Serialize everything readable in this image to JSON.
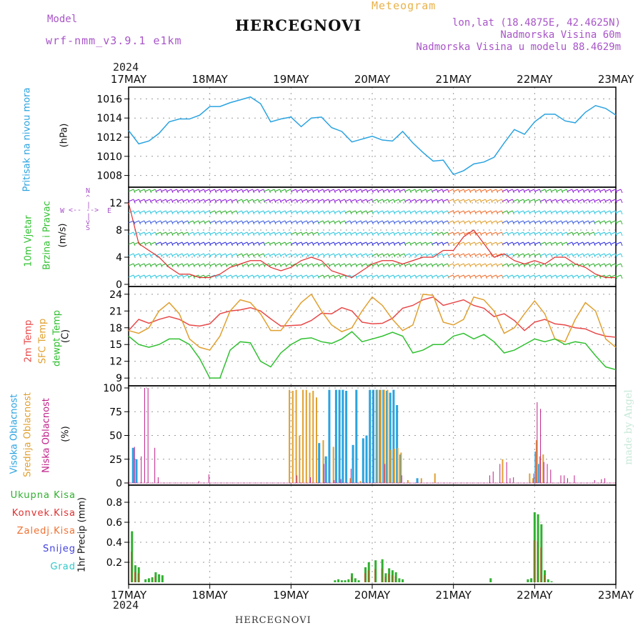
{
  "header": {
    "model_label": "Model",
    "model_name": "wrf-nmm_v3.9.1 e1km",
    "station": "HERCEGNOVI",
    "meteogram": "Meteogram",
    "lonlat": "lon,lat (18.4875E, 42.4625N)",
    "elevation": "Nadmorska Visina 60m",
    "model_elevation": "Nadmorska Visina u modelu 88.4629m",
    "year_top": "2024",
    "year_bottom": "2024",
    "footer_station": "HERCEGNOVI",
    "watermark": "made by Angel"
  },
  "axes": {
    "dates": [
      "17MAY",
      "18MAY",
      "19MAY",
      "20MAY",
      "21MAY",
      "22MAY",
      "23MAY"
    ]
  },
  "labels": {
    "pressure_name": "Pritisak na nivou mora",
    "pressure_unit": "(hPa)",
    "wind_name1": "10m Vjetar",
    "wind_name2": "Brzina i Pravac",
    "wind_unit": "(m/s)",
    "compass_n": "N",
    "compass_w": "W",
    "compass_e": "E",
    "compass_s": "S",
    "temp_2m": "2m Temp",
    "temp_sfc": "SFC Temp",
    "temp_dew": "dewpt Temp",
    "temp_unit": "(C)",
    "cloud_high": "Visoka Oblacnost",
    "cloud_mid": "Srednja Oblacnost",
    "cloud_low": "Niska Oblacnost",
    "cloud_unit": "(%)",
    "precip_total": "Ukupna Kisa",
    "precip_conv": "Konvek.Kisa",
    "precip_freezing": "Zaledj.Kisa",
    "precip_snow": "Snijeg",
    "precip_hail": "Grad",
    "precip_axis": "1hr Precip (mm)"
  },
  "colors": {
    "pressure": "#2aa3e0",
    "wind_speed": "#e03030",
    "temp_2m": "#e84848",
    "temp_sfc": "#e0a030",
    "dewpoint": "#30c030",
    "cloud_high": "#2aa3e0",
    "cloud_mid": "#e0a030",
    "cloud_low": "#c0208a",
    "precip_total": "#30b030",
    "precip_conv": "#e03030",
    "precip_freezing": "#f07030",
    "precip_snow": "#4040e0",
    "precip_hail": "#30c8c8",
    "label_purple": "#a855c8",
    "label_gold": "#e8b24a"
  },
  "chart_data": [
    {
      "type": "line",
      "name": "pressure",
      "x_unit": "hours from 17MAY 00UTC",
      "ylim": [
        1007,
        1017
      ],
      "yticks": [
        1008,
        1010,
        1012,
        1014,
        1016
      ],
      "series": [
        {
          "name": "",
          "x": [
            0,
            3,
            6,
            9,
            12,
            15,
            18,
            21,
            24,
            27,
            30,
            33,
            36,
            39,
            42,
            45,
            48,
            51,
            54,
            57,
            60,
            63,
            66,
            69,
            72,
            75,
            78,
            81,
            84,
            87,
            90,
            93,
            96,
            99,
            102,
            105,
            108,
            111,
            114,
            117,
            120,
            123,
            126,
            129,
            132,
            135,
            138,
            141,
            144
          ],
          "values": [
            1012.7,
            1011.3,
            1011.6,
            1012.4,
            1013.6,
            1013.9,
            1013.9,
            1014.3,
            1015.2,
            1015.2,
            1015.6,
            1015.9,
            1016.2,
            1015.5,
            1013.6,
            1013.9,
            1014.1,
            1013.1,
            1014.0,
            1014.1,
            1013.0,
            1012.6,
            1011.5,
            1011.8,
            1012.1,
            1011.7,
            1011.6,
            1012.6,
            1011.4,
            1010.4,
            1009.5,
            1009.6,
            1008.1,
            1008.5,
            1009.2,
            1009.4,
            1009.9,
            1011.4,
            1012.8,
            1012.3,
            1013.6,
            1014.4,
            1014.4,
            1013.7,
            1013.5,
            1014.6,
            1015.3,
            1015.0,
            1014.3
          ]
        }
      ]
    },
    {
      "type": "line",
      "name": "wind",
      "x_unit": "hours from 17MAY 00UTC",
      "ylim": [
        0,
        14
      ],
      "yticks": [
        0,
        4,
        8,
        12
      ],
      "series": [
        {
          "name": "",
          "x": [
            0,
            3,
            6,
            9,
            12,
            15,
            18,
            21,
            24,
            27,
            30,
            33,
            36,
            39,
            42,
            45,
            48,
            51,
            54,
            57,
            60,
            63,
            66,
            69,
            72,
            75,
            78,
            81,
            84,
            87,
            90,
            93,
            96,
            99,
            102,
            105,
            108,
            111,
            114,
            117,
            120,
            123,
            126,
            129,
            132,
            135,
            138,
            141,
            144
          ],
          "values": [
            12,
            6,
            5,
            4,
            2.5,
            1.5,
            1.5,
            1,
            1,
            1.5,
            2.5,
            3,
            3.5,
            3.5,
            2.5,
            2,
            2.5,
            3.5,
            4,
            3.5,
            2,
            1.5,
            1,
            2,
            3,
            3.5,
            3.5,
            3,
            3.5,
            4,
            4,
            5,
            5,
            7,
            8,
            6,
            4,
            4.5,
            3.5,
            3,
            3.5,
            3,
            4,
            4,
            3,
            2.5,
            1.5,
            1,
            1
          ]
        }
      ]
    },
    {
      "type": "line",
      "name": "temperature",
      "x_unit": "hours from 17MAY 00UTC",
      "ylim": [
        8,
        25
      ],
      "yticks": [
        9,
        12,
        15,
        18,
        21,
        24
      ],
      "series": [
        {
          "name": "2m Temp",
          "x": [
            0,
            3,
            6,
            9,
            12,
            15,
            18,
            21,
            24,
            27,
            30,
            33,
            36,
            39,
            42,
            45,
            48,
            51,
            54,
            57,
            60,
            63,
            66,
            69,
            72,
            75,
            78,
            81,
            84,
            87,
            90,
            93,
            96,
            99,
            102,
            105,
            108,
            111,
            114,
            117,
            120,
            123,
            126,
            129,
            132,
            135,
            138,
            141,
            144
          ],
          "values": [
            17.5,
            19.5,
            18.8,
            19.5,
            20.0,
            19.5,
            18.5,
            18.3,
            18.7,
            20.5,
            21.0,
            21.2,
            21.6,
            21.0,
            19.6,
            18.3,
            18.4,
            18.5,
            19.3,
            20.6,
            20.5,
            21.6,
            21.0,
            19.0,
            18.7,
            18.8,
            19.7,
            21.5,
            22.0,
            23.0,
            23.5,
            22.0,
            22.5,
            23.0,
            22.0,
            21.5,
            20.0,
            20.5,
            19.3,
            17.5,
            19.0,
            19.5,
            18.7,
            18.5,
            18.0,
            17.8,
            17.0,
            16.5,
            16.3
          ]
        },
        {
          "name": "SFC Temp",
          "x": [
            0,
            3,
            6,
            9,
            12,
            15,
            18,
            21,
            24,
            27,
            30,
            33,
            36,
            39,
            42,
            45,
            48,
            51,
            54,
            57,
            60,
            63,
            66,
            69,
            72,
            75,
            78,
            81,
            84,
            87,
            90,
            93,
            96,
            99,
            102,
            105,
            108,
            111,
            114,
            117,
            120,
            123,
            126,
            129,
            132,
            135,
            138,
            141,
            144
          ],
          "values": [
            17.5,
            17.0,
            18.0,
            21.0,
            22.5,
            20.5,
            16.0,
            14.5,
            14.0,
            16.5,
            21.0,
            23.0,
            22.5,
            20.5,
            17.5,
            17.5,
            20.0,
            22.5,
            24.0,
            21.0,
            18.5,
            17.3,
            18.0,
            21.0,
            23.5,
            22.0,
            19.5,
            17.5,
            18.5,
            24.0,
            23.8,
            19.0,
            18.5,
            19.5,
            23.5,
            23.0,
            21.0,
            17.0,
            18.0,
            20.5,
            22.8,
            20.5,
            16.0,
            15.5,
            19.5,
            22.5,
            21.0,
            16.0,
            14.5
          ]
        },
        {
          "name": "dewpt Temp",
          "x": [
            0,
            3,
            6,
            9,
            12,
            15,
            18,
            21,
            24,
            27,
            30,
            33,
            36,
            39,
            42,
            45,
            48,
            51,
            54,
            57,
            60,
            63,
            66,
            69,
            72,
            75,
            78,
            81,
            84,
            87,
            90,
            93,
            96,
            99,
            102,
            105,
            108,
            111,
            114,
            117,
            120,
            123,
            126,
            129,
            132,
            135,
            138,
            141,
            144
          ],
          "values": [
            16.5,
            15.0,
            14.5,
            15.0,
            16.0,
            16.0,
            15.0,
            12.5,
            9.0,
            9.0,
            14.0,
            15.5,
            15.3,
            12.0,
            11.0,
            13.5,
            15.0,
            16.0,
            16.2,
            15.5,
            15.2,
            16.0,
            17.3,
            15.5,
            16.0,
            16.5,
            17.2,
            16.5,
            13.5,
            14.0,
            15.0,
            15.0,
            16.5,
            17.0,
            16.0,
            16.8,
            15.5,
            13.5,
            14.0,
            15.0,
            16.0,
            15.5,
            16.0,
            15.0,
            15.5,
            15.2,
            13.0,
            11.0,
            10.5
          ]
        }
      ]
    },
    {
      "type": "bar",
      "name": "cloud_cover",
      "x_unit": "hours from 17MAY 00UTC",
      "ylim": [
        0,
        100
      ],
      "yticks": [
        0,
        25,
        50,
        75,
        100
      ],
      "series": [
        {
          "name": "Visoka Oblacnost",
          "x": [
            1,
            2,
            56,
            58,
            59,
            61,
            62,
            63,
            64,
            66,
            67,
            69,
            70,
            71,
            72,
            73,
            74,
            75,
            76,
            77,
            78,
            79,
            80,
            85,
            120,
            121
          ],
          "values": [
            37,
            25,
            42,
            28,
            98,
            98,
            98,
            98,
            97,
            40,
            98,
            47,
            50,
            98,
            98,
            98,
            98,
            98,
            97,
            95,
            98,
            82,
            30,
            5,
            33,
            20
          ]
        },
        {
          "name": "Srednja Oblacnost",
          "x": [
            47,
            48,
            49,
            50,
            51,
            52,
            53,
            54,
            55,
            57,
            60,
            65,
            68,
            73,
            74,
            75,
            76,
            77,
            78,
            79,
            80,
            82,
            86,
            90,
            110,
            118,
            119,
            120,
            121,
            122
          ],
          "values": [
            98,
            97,
            98,
            50,
            98,
            98,
            95,
            97,
            90,
            45,
            38,
            5,
            2,
            98,
            98,
            98,
            98,
            35,
            36,
            37,
            32,
            3,
            5,
            10,
            25,
            10,
            5,
            45,
            28,
            30
          ]
        },
        {
          "name": "Niska Oblacnost",
          "x": [
            1,
            3,
            4,
            5,
            7,
            8,
            20,
            23,
            49,
            53,
            57,
            60,
            62,
            65,
            75,
            80,
            106,
            107,
            109,
            111,
            112,
            113,
            119,
            120,
            121,
            122,
            123,
            124,
            127,
            128,
            129,
            131,
            137,
            139,
            140
          ],
          "values": [
            38,
            28,
            100,
            100,
            37,
            6,
            2,
            9,
            8,
            6,
            20,
            3,
            4,
            15,
            20,
            8,
            8,
            12,
            20,
            22,
            5,
            6,
            10,
            85,
            78,
            22,
            20,
            14,
            8,
            8,
            5,
            8,
            3,
            4,
            5
          ]
        }
      ]
    },
    {
      "type": "bar",
      "name": "precipitation",
      "x_unit": "hours from 17MAY 00UTC",
      "ylim": [
        0,
        0.95
      ],
      "yticks": [
        0.2,
        0.4,
        0.6,
        0.8
      ],
      "series": [
        {
          "name": "Ukupna Kisa",
          "x": [
            1,
            2,
            3,
            5,
            6,
            7,
            8,
            9,
            10,
            61,
            62,
            63,
            64,
            65,
            66,
            67,
            68,
            70,
            71,
            73,
            75,
            76,
            77,
            78,
            79,
            80,
            81,
            107,
            118,
            119,
            120,
            121,
            122,
            123,
            124,
            125
          ],
          "values": [
            0.51,
            0.17,
            0.15,
            0.03,
            0.04,
            0.05,
            0.1,
            0.08,
            0.07,
            0.02,
            0.03,
            0.02,
            0.02,
            0.03,
            0.09,
            0.04,
            0.02,
            0.15,
            0.2,
            0.22,
            0.23,
            0.09,
            0.14,
            0.12,
            0.1,
            0.04,
            0.03,
            0.04,
            0.03,
            0.04,
            0.7,
            0.68,
            0.58,
            0.12,
            0.03,
            0.01
          ]
        }
      ]
    }
  ]
}
